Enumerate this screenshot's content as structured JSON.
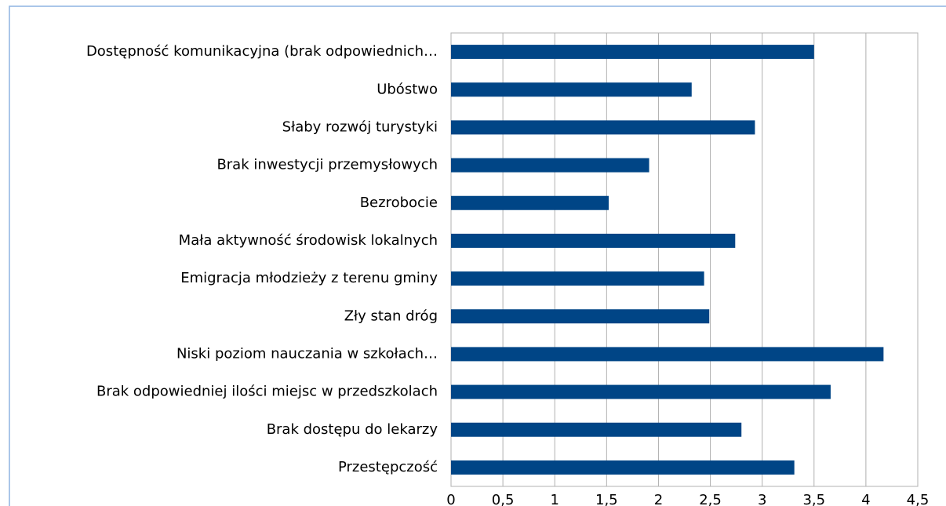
{
  "chart_data": {
    "type": "bar",
    "orientation": "horizontal",
    "categories": [
      "Dostępność komunikacyjna (brak odpowiednich…",
      "Ubóstwo",
      "Słaby rozwój turystyki",
      "Brak inwestycji przemysłowych",
      "Bezrobocie",
      "Mała aktywność środowisk lokalnych",
      "Emigracja młodzieży z terenu gminy",
      "Zły stan dróg",
      "Niski poziom nauczania w szkołach…",
      "Brak odpowiedniej ilości miejsc w przedszkolach",
      "Brak dostępu do lekarzy",
      "Przestępczość"
    ],
    "values": [
      3.5,
      2.32,
      2.93,
      1.91,
      1.52,
      2.74,
      2.44,
      2.49,
      4.17,
      3.66,
      2.8,
      3.31
    ],
    "color": "#004586",
    "xlim": [
      0,
      4.5
    ],
    "xticks": [
      0,
      {
        "value": 0.5,
        "label": "0,5"
      },
      1,
      {
        "value": 1.5,
        "label": "1,5"
      },
      2,
      {
        "value": 2.5,
        "label": "2,5"
      },
      3,
      {
        "value": 3.5,
        "label": "3,5"
      },
      4,
      {
        "value": 4.5,
        "label": "4,5"
      }
    ],
    "grid": true
  }
}
